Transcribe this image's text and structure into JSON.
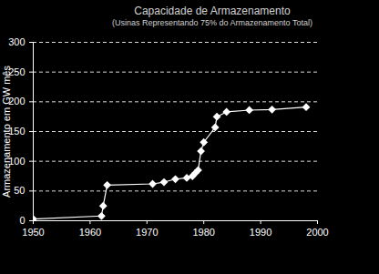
{
  "chart_data": {
    "type": "line",
    "title": "Capacidade de Armazenamento",
    "subtitle": "(Usinas Representando 75% do Armazenamento Total)",
    "y_label": "Armazenamento em GW mês",
    "x": [
      1950,
      1962,
      1962.3,
      1963,
      1971,
      1973,
      1975,
      1977,
      1978,
      1978.5,
      1979,
      1979.5,
      1980,
      1982,
      1982.3,
      1984,
      1988,
      1992,
      1998
    ],
    "values": [
      3,
      8,
      25,
      60,
      62,
      65,
      70,
      72,
      75,
      80,
      85,
      117,
      132,
      157,
      175,
      183,
      186,
      187,
      191
    ],
    "color": "#ffffff",
    "marker": "diamond",
    "xlim": [
      1950,
      2000
    ],
    "xticks": [
      1950,
      1960,
      1970,
      1980,
      1990,
      2000
    ],
    "ylim": [
      0,
      300
    ],
    "yticks": [
      0,
      50,
      100,
      150,
      200,
      250,
      300
    ],
    "grid": true
  }
}
